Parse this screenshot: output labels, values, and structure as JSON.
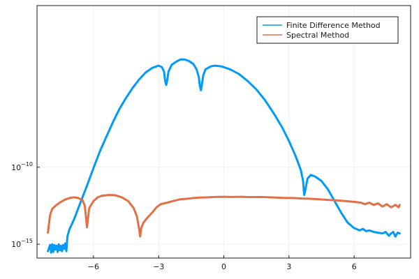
{
  "chart_data": {
    "type": "line",
    "xlabel": "",
    "ylabel": "",
    "title": "",
    "xlim": [
      -8.6,
      8.6
    ],
    "ylim_log10": [
      -15.9,
      0.5
    ],
    "yscale": "log",
    "grid": true,
    "legend_position": "top-right",
    "x_ticks": [
      {
        "value": -6,
        "label": "−6"
      },
      {
        "value": -3,
        "label": "−3"
      },
      {
        "value": 0,
        "label": "0"
      },
      {
        "value": 3,
        "label": "3"
      },
      {
        "value": 6,
        "label": "6"
      }
    ],
    "y_ticks": [
      {
        "log10": -10,
        "mantissa": "10",
        "exponent": "−10"
      },
      {
        "log10": -15,
        "mantissa": "10",
        "exponent": "−15"
      }
    ],
    "series": [
      {
        "name": "Finite Difference Method",
        "color": "#009af9",
        "points": [
          [
            -8.1,
            -15.45
          ],
          [
            -8.0,
            -15.05
          ],
          [
            -7.95,
            -15.55
          ],
          [
            -7.9,
            -15.0
          ],
          [
            -7.85,
            -15.5
          ],
          [
            -7.8,
            -15.05
          ],
          [
            -7.75,
            -15.35
          ],
          [
            -7.7,
            -15.1
          ],
          [
            -7.65,
            -15.5
          ],
          [
            -7.6,
            -15.0
          ],
          [
            -7.55,
            -15.4
          ],
          [
            -7.5,
            -15.1
          ],
          [
            -7.45,
            -15.45
          ],
          [
            -7.4,
            -15.05
          ],
          [
            -7.35,
            -15.3
          ],
          [
            -7.3,
            -14.95
          ],
          [
            -7.25,
            -15.45
          ],
          [
            -7.2,
            -14.5
          ],
          [
            -7.1,
            -14.0
          ],
          [
            -6.9,
            -13.4
          ],
          [
            -6.6,
            -12.3
          ],
          [
            -6.3,
            -11.2
          ],
          [
            -6.0,
            -10.05
          ],
          [
            -5.7,
            -8.95
          ],
          [
            -5.4,
            -8.0
          ],
          [
            -5.1,
            -7.05
          ],
          [
            -4.8,
            -6.2
          ],
          [
            -4.5,
            -5.5
          ],
          [
            -4.2,
            -4.85
          ],
          [
            -3.9,
            -4.3
          ],
          [
            -3.6,
            -3.85
          ],
          [
            -3.3,
            -3.55
          ],
          [
            -3.0,
            -3.4
          ],
          [
            -2.85,
            -3.5
          ],
          [
            -2.75,
            -3.8
          ],
          [
            -2.7,
            -4.4
          ],
          [
            -2.65,
            -4.65
          ],
          [
            -2.6,
            -4.3
          ],
          [
            -2.55,
            -3.8
          ],
          [
            -2.4,
            -3.35
          ],
          [
            -2.2,
            -3.15
          ],
          [
            -2.0,
            -3.0
          ],
          [
            -1.8,
            -3.0
          ],
          [
            -1.6,
            -3.1
          ],
          [
            -1.4,
            -3.3
          ],
          [
            -1.25,
            -3.65
          ],
          [
            -1.15,
            -4.15
          ],
          [
            -1.1,
            -4.75
          ],
          [
            -1.05,
            -5.0
          ],
          [
            -1.0,
            -4.55
          ],
          [
            -0.95,
            -4.05
          ],
          [
            -0.85,
            -3.65
          ],
          [
            -0.6,
            -3.45
          ],
          [
            -0.4,
            -3.4
          ],
          [
            -0.1,
            -3.45
          ],
          [
            0.3,
            -3.65
          ],
          [
            0.7,
            -3.95
          ],
          [
            1.1,
            -4.4
          ],
          [
            1.5,
            -4.95
          ],
          [
            1.9,
            -5.65
          ],
          [
            2.3,
            -6.5
          ],
          [
            2.7,
            -7.45
          ],
          [
            3.0,
            -8.3
          ],
          [
            3.3,
            -9.25
          ],
          [
            3.55,
            -10.2
          ],
          [
            3.65,
            -10.9
          ],
          [
            3.7,
            -11.8
          ],
          [
            3.75,
            -11.5
          ],
          [
            3.85,
            -10.75
          ],
          [
            4.0,
            -10.5
          ],
          [
            4.2,
            -10.6
          ],
          [
            4.5,
            -10.9
          ],
          [
            4.8,
            -11.45
          ],
          [
            5.1,
            -12.2
          ],
          [
            5.4,
            -12.95
          ],
          [
            5.7,
            -13.6
          ],
          [
            6.0,
            -13.95
          ],
          [
            6.25,
            -14.1
          ],
          [
            6.4,
            -14.0
          ],
          [
            6.55,
            -14.15
          ],
          [
            6.7,
            -14.1
          ],
          [
            6.9,
            -14.2
          ],
          [
            7.1,
            -14.25
          ],
          [
            7.3,
            -14.3
          ],
          [
            7.45,
            -14.2
          ],
          [
            7.6,
            -14.45
          ],
          [
            7.7,
            -14.3
          ],
          [
            7.8,
            -14.2
          ],
          [
            7.9,
            -14.5
          ],
          [
            8.0,
            -14.25
          ],
          [
            8.1,
            -14.3
          ]
        ]
      },
      {
        "name": "Spectral Method",
        "color": "#e26f46",
        "points": [
          [
            -8.1,
            -14.25
          ],
          [
            -8.0,
            -13.1
          ],
          [
            -7.9,
            -12.7
          ],
          [
            -7.7,
            -12.45
          ],
          [
            -7.5,
            -12.25
          ],
          [
            -7.3,
            -12.1
          ],
          [
            -7.1,
            -12.0
          ],
          [
            -6.9,
            -11.95
          ],
          [
            -6.7,
            -12.0
          ],
          [
            -6.5,
            -12.15
          ],
          [
            -6.4,
            -12.5
          ],
          [
            -6.35,
            -13.2
          ],
          [
            -6.3,
            -13.9
          ],
          [
            -6.25,
            -13.3
          ],
          [
            -6.2,
            -12.65
          ],
          [
            -6.0,
            -12.2
          ],
          [
            -5.8,
            -11.95
          ],
          [
            -5.6,
            -11.85
          ],
          [
            -5.3,
            -11.8
          ],
          [
            -5.0,
            -11.82
          ],
          [
            -4.7,
            -11.95
          ],
          [
            -4.4,
            -12.2
          ],
          [
            -4.15,
            -12.65
          ],
          [
            -4.0,
            -13.2
          ],
          [
            -3.9,
            -14.0
          ],
          [
            -3.85,
            -14.5
          ],
          [
            -3.8,
            -13.95
          ],
          [
            -3.7,
            -13.6
          ],
          [
            -3.5,
            -13.25
          ],
          [
            -3.3,
            -12.95
          ],
          [
            -3.1,
            -12.6
          ],
          [
            -2.9,
            -12.4
          ],
          [
            -2.6,
            -12.3
          ],
          [
            -2.3,
            -12.18
          ],
          [
            -2.0,
            -12.08
          ],
          [
            -1.7,
            -12.05
          ],
          [
            -1.4,
            -12.0
          ],
          [
            -1.1,
            -11.97
          ],
          [
            -0.8,
            -11.96
          ],
          [
            -0.4,
            -11.93
          ],
          [
            0.0,
            -11.92
          ],
          [
            0.4,
            -11.93
          ],
          [
            0.8,
            -11.92
          ],
          [
            1.2,
            -11.94
          ],
          [
            1.6,
            -11.93
          ],
          [
            2.0,
            -11.95
          ],
          [
            2.4,
            -11.97
          ],
          [
            2.8,
            -11.99
          ],
          [
            3.2,
            -12.0
          ],
          [
            3.6,
            -12.03
          ],
          [
            4.0,
            -12.05
          ],
          [
            4.4,
            -12.08
          ],
          [
            4.8,
            -12.12
          ],
          [
            5.2,
            -12.15
          ],
          [
            5.6,
            -12.2
          ],
          [
            6.0,
            -12.25
          ],
          [
            6.3,
            -12.3
          ],
          [
            6.5,
            -12.4
          ],
          [
            6.7,
            -12.3
          ],
          [
            6.9,
            -12.45
          ],
          [
            7.1,
            -12.35
          ],
          [
            7.3,
            -12.55
          ],
          [
            7.5,
            -12.4
          ],
          [
            7.7,
            -12.6
          ],
          [
            7.9,
            -12.45
          ],
          [
            8.05,
            -12.6
          ],
          [
            8.1,
            -12.45
          ]
        ]
      }
    ]
  }
}
